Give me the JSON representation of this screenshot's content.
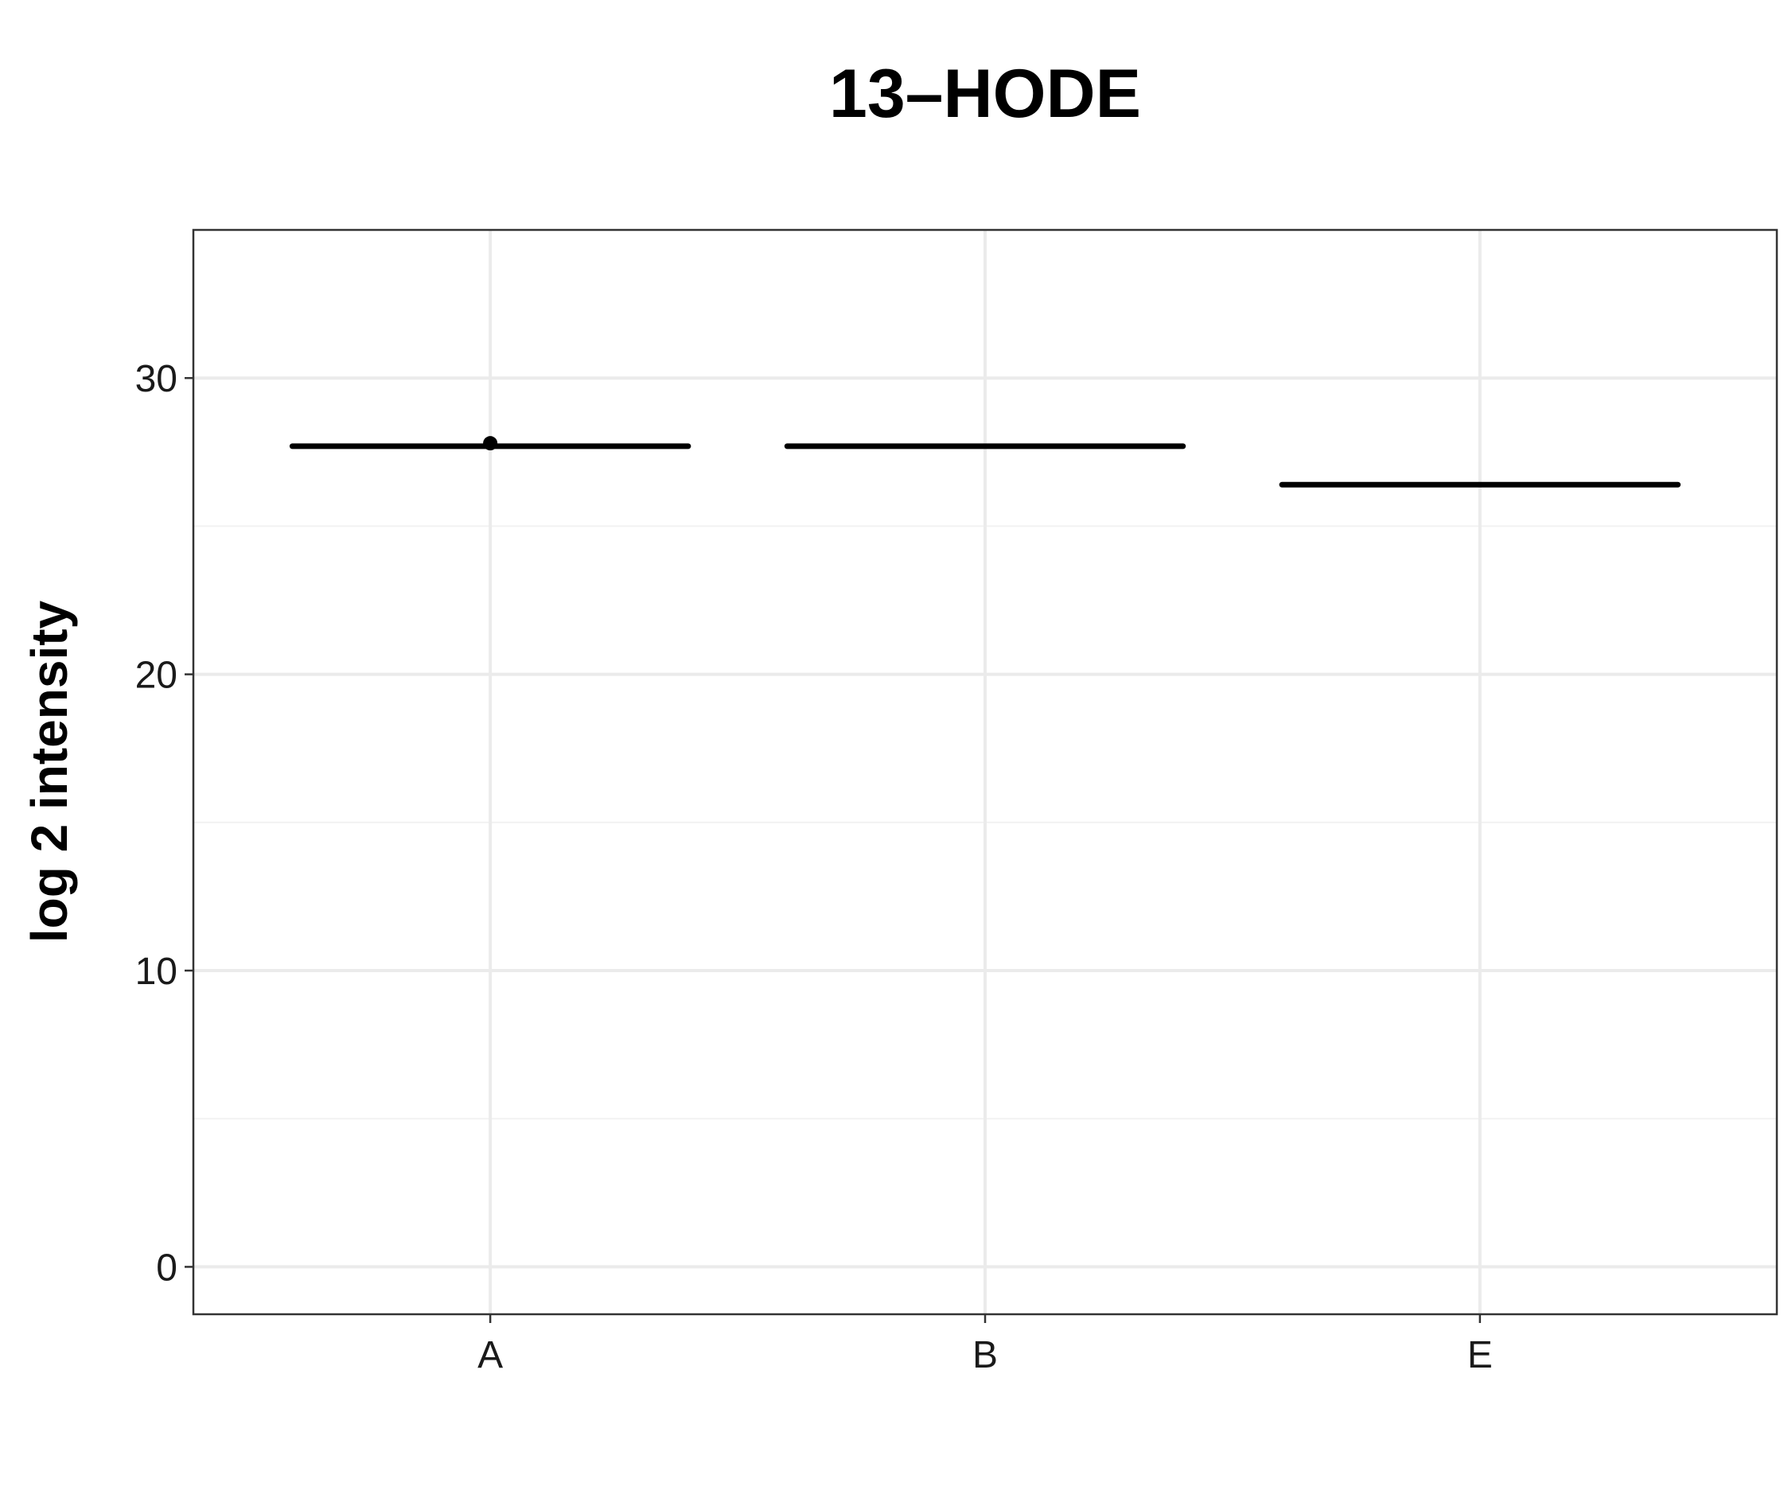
{
  "chart_data": {
    "type": "box",
    "title": "13–HODE",
    "xlabel": "",
    "ylabel": "log 2 intensity",
    "categories": [
      "A",
      "B",
      "E"
    ],
    "values": [
      27.7,
      27.7,
      26.4
    ],
    "outliers": [
      {
        "category": "A",
        "value": 27.8
      }
    ],
    "ylim": [
      -1.6,
      35.0
    ],
    "yticks": [
      0,
      10,
      20,
      30
    ],
    "ytick_labels": [
      "0",
      "10",
      "20",
      "30"
    ],
    "grid": true,
    "legend": "none",
    "colors": {
      "line": "#000000",
      "grid": "#ebebeb",
      "border": "#333333",
      "background": "#ffffff"
    }
  }
}
